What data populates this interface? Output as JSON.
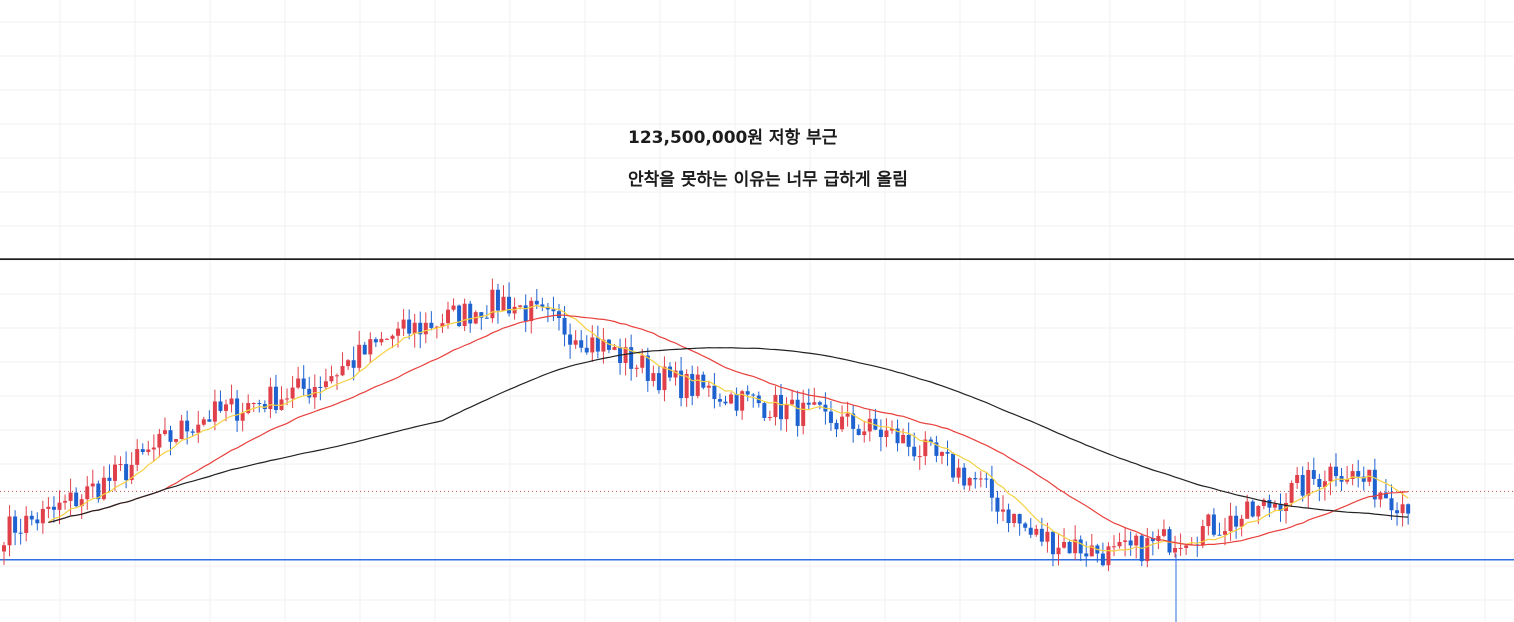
{
  "annotation": {
    "line1": "123,500,000원 저항 부근",
    "line2": "안착을 못하는 이유는 너무 급하게 올림"
  },
  "colors": {
    "up": "#e0404a",
    "down": "#1e62d0",
    "ma_short": "#f5d142",
    "ma_mid": "#e8403c",
    "ma_long": "#222222",
    "resistance": "#000000",
    "support": "#2f6fe0",
    "last_price": "#c85050",
    "grid": "#f0f0f0"
  },
  "chart_data": {
    "type": "candlestick",
    "title": "",
    "xlabel": "",
    "ylabel": "",
    "grid": true,
    "candle_count": 254,
    "horizontal_lines": [
      {
        "name": "resistance",
        "value": 123500000,
        "style": "solid"
      },
      {
        "name": "support",
        "value": 109000000,
        "style": "solid"
      },
      {
        "name": "last",
        "value": 112300000,
        "style": "dotted"
      }
    ],
    "moving_averages": [
      "short",
      "mid",
      "long"
    ],
    "price_path": [
      [
        0,
        110400000
      ],
      [
        8,
        111200000
      ],
      [
        20,
        113000000
      ],
      [
        35,
        115800000
      ],
      [
        55,
        117300000
      ],
      [
        70,
        119800000
      ],
      [
        90,
        121500000
      ],
      [
        105,
        119700000
      ],
      [
        120,
        117600000
      ],
      [
        140,
        116300000
      ],
      [
        160,
        115000000
      ],
      [
        175,
        112800000
      ],
      [
        185,
        110200000
      ],
      [
        200,
        109200000
      ],
      [
        225,
        111200000
      ],
      [
        240,
        113500000
      ],
      [
        252,
        111800000
      ]
    ]
  }
}
